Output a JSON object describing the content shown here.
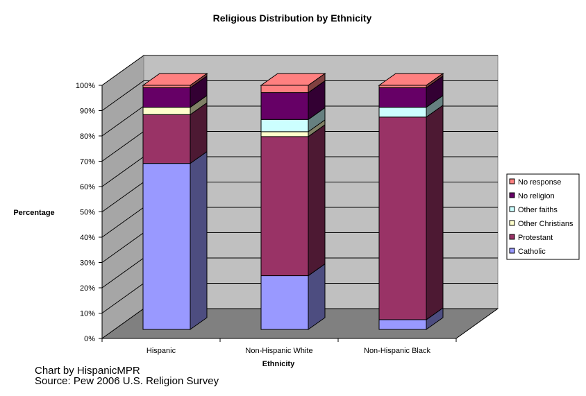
{
  "chart_data": {
    "type": "bar",
    "stacked": true,
    "three_d": true,
    "title": "Religious Distribution by Ethnicity",
    "xlabel": "Ethnicity",
    "ylabel": "Percentage",
    "categories": [
      "Hispanic",
      "Non-Hispanic White",
      "Non-Hispanic Black"
    ],
    "y_ticks": [
      "0%",
      "10%",
      "20%",
      "30%",
      "40%",
      "50%",
      "60%",
      "70%",
      "80%",
      "90%",
      "100%"
    ],
    "ylim": [
      0,
      100
    ],
    "grid": true,
    "legend_position": "right",
    "series": [
      {
        "name": "Catholic",
        "values": [
          68,
          22,
          4
        ],
        "color": "#9999ff",
        "side": "#4d4d80"
      },
      {
        "name": "Protestant",
        "values": [
          20,
          57,
          83
        ],
        "color": "#993366",
        "side": "#4d1933"
      },
      {
        "name": "Other Christians",
        "values": [
          3,
          2,
          0
        ],
        "color": "#ffffcc",
        "side": "#808066"
      },
      {
        "name": "Other faiths",
        "values": [
          0,
          5,
          4
        ],
        "color": "#ccffff",
        "side": "#668080"
      },
      {
        "name": "No religion",
        "values": [
          8,
          11,
          8
        ],
        "color": "#660066",
        "side": "#330033"
      },
      {
        "name": "No response",
        "values": [
          1,
          3,
          1
        ],
        "color": "#ff8080",
        "side": "#804040"
      }
    ],
    "legend_order": [
      "No response",
      "No religion",
      "Other faiths",
      "Other Christians",
      "Protestant",
      "Catholic"
    ]
  },
  "credits": {
    "line1": "Chart by HispanicMPR",
    "line2": "Source: Pew 2006 U.S. Religion Survey"
  }
}
